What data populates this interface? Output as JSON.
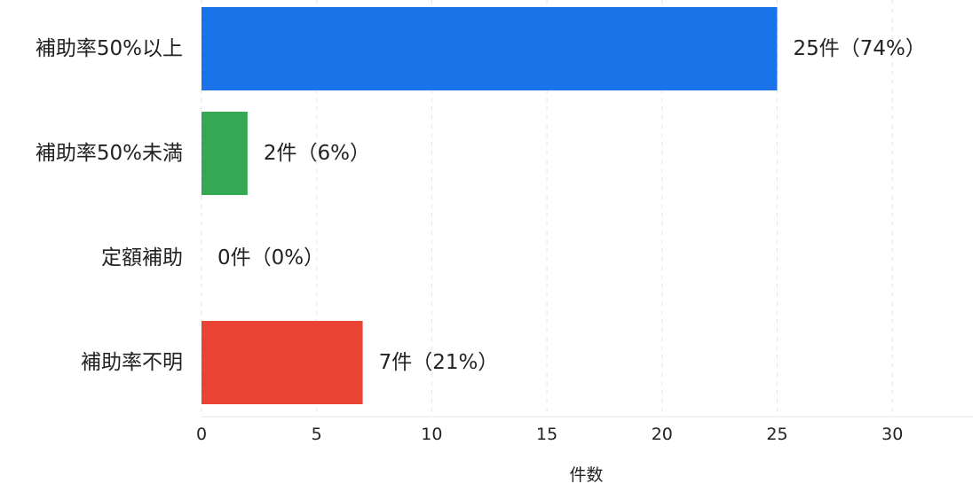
{
  "chart_data": {
    "type": "bar",
    "orientation": "horizontal",
    "categories": [
      "補助率50%以上",
      "補助率50%未満",
      "定額補助",
      "補助率不明"
    ],
    "values": [
      25,
      2,
      0,
      7
    ],
    "data_labels": [
      "25件（74%）",
      "2件（6%）",
      "0件（0%）",
      "7件（21%）"
    ],
    "colors": [
      "#1a73e8",
      "#34a853",
      "#fbbc04",
      "#ea4335"
    ],
    "xlabel": "件数",
    "ylabel": "",
    "xlim": [
      0,
      33.5
    ],
    "xticks": [
      0,
      5,
      10,
      15,
      20,
      25,
      30
    ],
    "grid": "vertical dashed"
  }
}
